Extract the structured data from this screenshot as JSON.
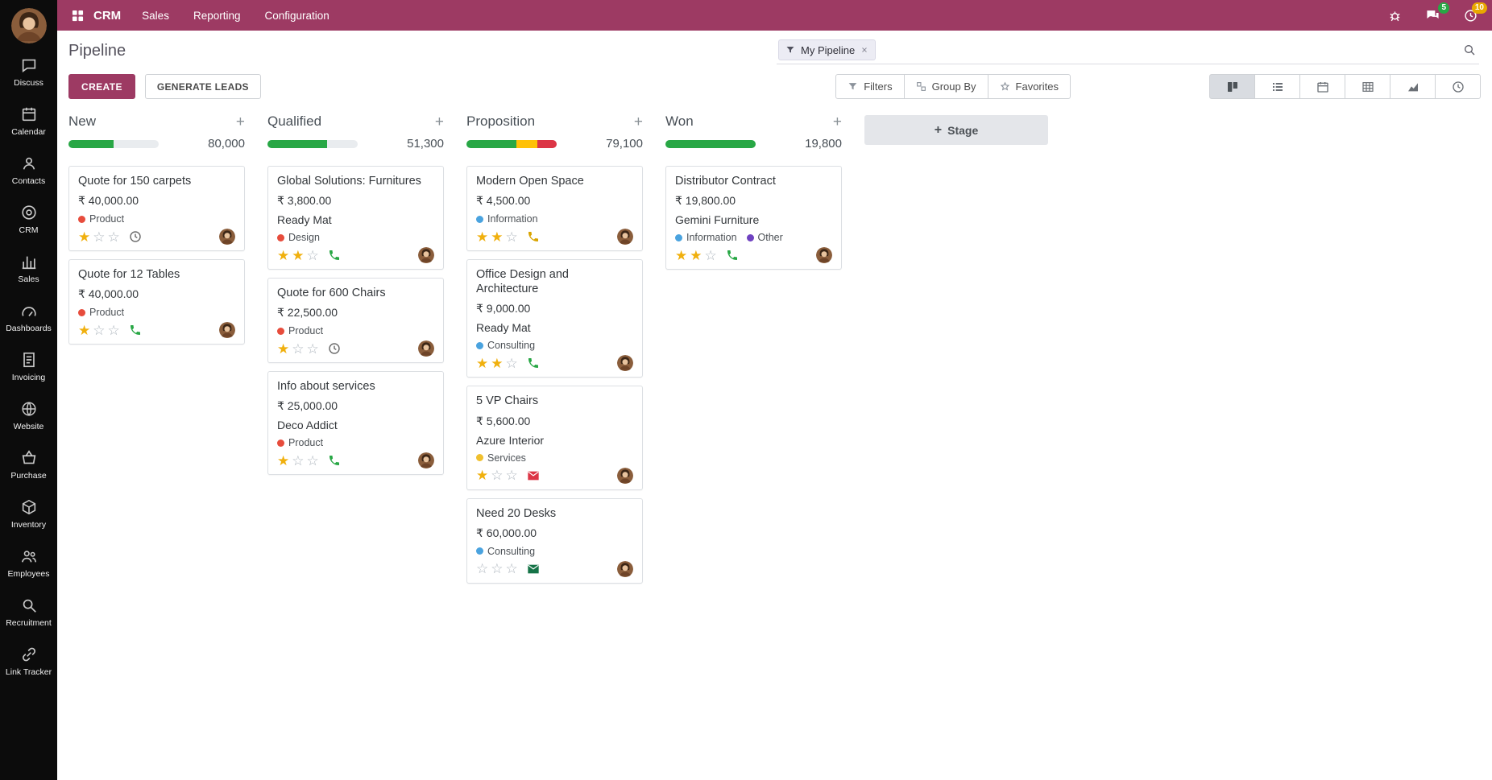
{
  "theme": {
    "brand": "#9d3a63",
    "success": "#28a745",
    "warning": "#e9a800",
    "danger": "#dc3545",
    "progress_track": "#e9ecef",
    "star": "#f0b00e"
  },
  "sidebar": {
    "items": [
      {
        "label": "Discuss",
        "icon": "discuss-icon"
      },
      {
        "label": "Calendar",
        "icon": "calendar-icon"
      },
      {
        "label": "Contacts",
        "icon": "contacts-icon"
      },
      {
        "label": "CRM",
        "icon": "crm-icon"
      },
      {
        "label": "Sales",
        "icon": "sales-icon"
      },
      {
        "label": "Dashboards",
        "icon": "dashboards-icon"
      },
      {
        "label": "Invoicing",
        "icon": "invoicing-icon"
      },
      {
        "label": "Website",
        "icon": "website-icon"
      },
      {
        "label": "Purchase",
        "icon": "purchase-icon"
      },
      {
        "label": "Inventory",
        "icon": "inventory-icon"
      },
      {
        "label": "Employees",
        "icon": "employees-icon"
      },
      {
        "label": "Recruitment",
        "icon": "recruitment-icon"
      },
      {
        "label": "Link Tracker",
        "icon": "link-tracker-icon"
      }
    ]
  },
  "topbar": {
    "app_name": "CRM",
    "menus": [
      {
        "label": "Sales"
      },
      {
        "label": "Reporting"
      },
      {
        "label": "Configuration"
      }
    ],
    "right": {
      "messages_badge": "5",
      "activities_badge": "10"
    }
  },
  "header": {
    "title": "Pipeline",
    "search": {
      "facet_label": "My Pipeline"
    }
  },
  "toolbar": {
    "create_label": "CREATE",
    "generate_leads_label": "GENERATE LEADS",
    "filters_label": "Filters",
    "group_by_label": "Group By",
    "favorites_label": "Favorites",
    "view_switcher": [
      {
        "name": "kanban",
        "active": true
      },
      {
        "name": "list",
        "active": false
      },
      {
        "name": "calendar",
        "active": false
      },
      {
        "name": "pivot",
        "active": false
      },
      {
        "name": "graph",
        "active": false
      },
      {
        "name": "activity",
        "active": false
      }
    ]
  },
  "kanban": {
    "add_stage_label": "Stage",
    "stars_max": 3,
    "columns": [
      {
        "name": "New",
        "total": "80,000",
        "progress": [
          {
            "color": "#28a745",
            "percent": 50
          }
        ],
        "cards": [
          {
            "title": "Quote for 150 carpets",
            "amount": "₹ 40,000.00",
            "tags": [
              {
                "label": "Product",
                "color": "#e74c3c"
              }
            ],
            "stars": 1,
            "activity": {
              "icon": "clock-activity-icon",
              "color": "#6e6e6e"
            }
          },
          {
            "title": "Quote for 12 Tables",
            "amount": "₹ 40,000.00",
            "tags": [
              {
                "label": "Product",
                "color": "#e74c3c"
              }
            ],
            "stars": 1,
            "activity": {
              "icon": "phone-icon",
              "color": "#28a745"
            }
          }
        ]
      },
      {
        "name": "Qualified",
        "total": "51,300",
        "progress": [
          {
            "color": "#28a745",
            "percent": 66
          }
        ],
        "cards": [
          {
            "title": "Global Solutions: Furnitures",
            "amount": "₹ 3,800.00",
            "partner": "Ready Mat",
            "tags": [
              {
                "label": "Design",
                "color": "#e74c3c"
              }
            ],
            "stars": 2,
            "activity": {
              "icon": "phone-icon",
              "color": "#28a745"
            }
          },
          {
            "title": "Quote for 600 Chairs",
            "amount": "₹ 22,500.00",
            "tags": [
              {
                "label": "Product",
                "color": "#e74c3c"
              }
            ],
            "stars": 1,
            "activity": {
              "icon": "clock-activity-icon",
              "color": "#6e6e6e"
            }
          },
          {
            "title": "Info about services",
            "amount": "₹ 25,000.00",
            "partner": "Deco Addict",
            "tags": [
              {
                "label": "Product",
                "color": "#e74c3c"
              }
            ],
            "stars": 1,
            "activity": {
              "icon": "phone-icon",
              "color": "#28a745"
            }
          }
        ]
      },
      {
        "name": "Proposition",
        "total": "79,100",
        "progress": [
          {
            "color": "#28a745",
            "percent": 55
          },
          {
            "color": "#ffc107",
            "percent": 24
          },
          {
            "color": "#dc3545",
            "percent": 21
          }
        ],
        "cards": [
          {
            "title": "Modern Open Space",
            "amount": "₹ 4,500.00",
            "tags": [
              {
                "label": "Information",
                "color": "#4aa3df"
              }
            ],
            "stars": 2,
            "activity": {
              "icon": "phone-icon",
              "color": "#d9a400"
            }
          },
          {
            "title": "Office Design and Architecture",
            "amount": "₹ 9,000.00",
            "partner": "Ready Mat",
            "tags": [
              {
                "label": "Consulting",
                "color": "#4aa3df"
              }
            ],
            "stars": 2,
            "activity": {
              "icon": "phone-icon",
              "color": "#28a745"
            }
          },
          {
            "title": "5 VP Chairs",
            "amount": "₹ 5,600.00",
            "partner": "Azure Interior",
            "tags": [
              {
                "label": "Services",
                "color": "#f0c02e"
              }
            ],
            "stars": 1,
            "activity": {
              "icon": "email-icon",
              "color": "#dc3545"
            }
          },
          {
            "title": "Need 20 Desks",
            "amount": "₹ 60,000.00",
            "tags": [
              {
                "label": "Consulting",
                "color": "#4aa3df"
              }
            ],
            "stars": 0,
            "activity": {
              "icon": "email-icon",
              "color": "#157347"
            }
          }
        ]
      },
      {
        "name": "Won",
        "total": "19,800",
        "progress": [
          {
            "color": "#28a745",
            "percent": 100
          }
        ],
        "cards": [
          {
            "title": "Distributor Contract",
            "amount": "₹ 19,800.00",
            "partner": "Gemini Furniture",
            "tags": [
              {
                "label": "Information",
                "color": "#4aa3df"
              },
              {
                "label": "Other",
                "color": "#6f42c1"
              }
            ],
            "stars": 2,
            "activity": {
              "icon": "phone-icon",
              "color": "#28a745"
            }
          }
        ]
      }
    ]
  }
}
